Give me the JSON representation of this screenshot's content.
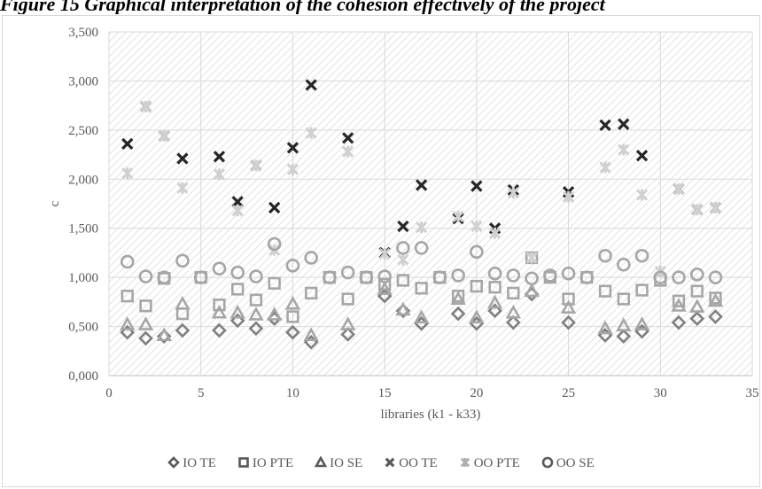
{
  "caption": "Figure 15 Graphical interpretation of the cohesion effectively of the project",
  "chart_data": {
    "type": "scatter",
    "title": "",
    "xlabel": "libraries (k1 - k33)",
    "ylabel": "c",
    "xlim": [
      0,
      35
    ],
    "ylim": [
      0,
      3.5
    ],
    "x_ticks": [
      "0",
      "5",
      "10",
      "15",
      "20",
      "25",
      "30",
      "35"
    ],
    "y_ticks": [
      "0,000",
      "0,500",
      "1,000",
      "1,500",
      "2,000",
      "2,500",
      "3,000",
      "3,500"
    ],
    "grid": true,
    "legend_position": "bottom",
    "series": [
      {
        "name": "IO TE",
        "marker": "diamond",
        "color": "#7f7f7f",
        "points": [
          [
            1,
            0.44
          ],
          [
            2,
            0.38
          ],
          [
            3,
            0.4
          ],
          [
            4,
            0.46
          ],
          [
            6,
            0.46
          ],
          [
            7,
            0.56
          ],
          [
            8,
            0.48
          ],
          [
            9,
            0.58
          ],
          [
            10,
            0.44
          ],
          [
            11,
            0.34
          ],
          [
            13,
            0.42
          ],
          [
            15,
            0.81
          ],
          [
            16,
            0.66
          ],
          [
            17,
            0.53
          ],
          [
            19,
            0.63
          ],
          [
            20,
            0.53
          ],
          [
            21,
            0.66
          ],
          [
            22,
            0.54
          ],
          [
            23,
            0.83
          ],
          [
            25,
            0.54
          ],
          [
            27,
            0.41
          ],
          [
            28,
            0.4
          ],
          [
            29,
            0.45
          ],
          [
            31,
            0.54
          ],
          [
            32,
            0.58
          ],
          [
            33,
            0.6
          ]
        ]
      },
      {
        "name": "IO PTE",
        "marker": "square",
        "color": "#a6a6a6",
        "points": [
          [
            1,
            0.81
          ],
          [
            2,
            0.71
          ],
          [
            3,
            0.99
          ],
          [
            4,
            0.63
          ],
          [
            5,
            1.0
          ],
          [
            6,
            0.72
          ],
          [
            7,
            0.88
          ],
          [
            8,
            0.77
          ],
          [
            9,
            0.94
          ],
          [
            10,
            0.6
          ],
          [
            11,
            0.84
          ],
          [
            12,
            1.0
          ],
          [
            13,
            0.78
          ],
          [
            14,
            1.0
          ],
          [
            15,
            0.93
          ],
          [
            16,
            0.97
          ],
          [
            17,
            0.89
          ],
          [
            18,
            1.0
          ],
          [
            19,
            0.81
          ],
          [
            20,
            0.91
          ],
          [
            21,
            0.9
          ],
          [
            22,
            0.84
          ],
          [
            23,
            1.2
          ],
          [
            24,
            1.0
          ],
          [
            25,
            0.78
          ],
          [
            26,
            1.0
          ],
          [
            27,
            0.86
          ],
          [
            28,
            0.78
          ],
          [
            29,
            0.87
          ],
          [
            30,
            0.97
          ],
          [
            31,
            0.76
          ],
          [
            32,
            0.86
          ],
          [
            33,
            0.79
          ]
        ]
      },
      {
        "name": "IO SE",
        "marker": "triangle",
        "color": "#a6a6a6",
        "points": [
          [
            1,
            0.52
          ],
          [
            2,
            0.52
          ],
          [
            3,
            0.41
          ],
          [
            4,
            0.73
          ],
          [
            6,
            0.64
          ],
          [
            7,
            0.64
          ],
          [
            8,
            0.62
          ],
          [
            9,
            0.62
          ],
          [
            10,
            0.73
          ],
          [
            11,
            0.41
          ],
          [
            13,
            0.52
          ],
          [
            15,
            0.88
          ],
          [
            16,
            0.67
          ],
          [
            17,
            0.59
          ],
          [
            19,
            0.78
          ],
          [
            20,
            0.59
          ],
          [
            21,
            0.74
          ],
          [
            22,
            0.64
          ],
          [
            23,
            0.86
          ],
          [
            25,
            0.69
          ],
          [
            27,
            0.48
          ],
          [
            28,
            0.51
          ],
          [
            29,
            0.52
          ],
          [
            31,
            0.71
          ],
          [
            32,
            0.7
          ],
          [
            33,
            0.76
          ]
        ]
      },
      {
        "name": "OO TE",
        "marker": "x",
        "color": "#262626",
        "points": [
          [
            1,
            2.36
          ],
          [
            2,
            2.74
          ],
          [
            3,
            2.44
          ],
          [
            4,
            2.21
          ],
          [
            6,
            2.23
          ],
          [
            7,
            1.77
          ],
          [
            8,
            2.14
          ],
          [
            9,
            1.71
          ],
          [
            10,
            2.32
          ],
          [
            11,
            2.96
          ],
          [
            13,
            2.42
          ],
          [
            15,
            1.25
          ],
          [
            16,
            1.52
          ],
          [
            17,
            1.94
          ],
          [
            19,
            1.6
          ],
          [
            20,
            1.93
          ],
          [
            21,
            1.5
          ],
          [
            22,
            1.89
          ],
          [
            25,
            1.87
          ],
          [
            27,
            2.55
          ],
          [
            28,
            2.56
          ],
          [
            29,
            2.24
          ],
          [
            31,
            1.9
          ],
          [
            32,
            1.69
          ],
          [
            33,
            1.71
          ]
        ]
      },
      {
        "name": "OO PTE",
        "marker": "star",
        "color": "#d0d0d0",
        "points": [
          [
            1,
            2.06
          ],
          [
            2,
            2.74
          ],
          [
            3,
            2.44
          ],
          [
            4,
            1.91
          ],
          [
            6,
            2.05
          ],
          [
            7,
            1.68
          ],
          [
            8,
            2.14
          ],
          [
            9,
            1.28
          ],
          [
            10,
            2.1
          ],
          [
            11,
            2.47
          ],
          [
            13,
            2.28
          ],
          [
            15,
            1.24
          ],
          [
            16,
            1.18
          ],
          [
            17,
            1.51
          ],
          [
            19,
            1.62
          ],
          [
            20,
            1.52
          ],
          [
            21,
            1.45
          ],
          [
            22,
            1.86
          ],
          [
            23,
            1.2
          ],
          [
            25,
            1.82
          ],
          [
            27,
            2.12
          ],
          [
            28,
            2.3
          ],
          [
            29,
            1.84
          ],
          [
            30,
            1.06
          ],
          [
            31,
            1.9
          ],
          [
            32,
            1.69
          ],
          [
            33,
            1.71
          ]
        ]
      },
      {
        "name": "OO SE",
        "marker": "circle",
        "color": "#a6a6a6",
        "points": [
          [
            1,
            1.16
          ],
          [
            2,
            1.01
          ],
          [
            3,
            1.0
          ],
          [
            4,
            1.17
          ],
          [
            5,
            1.0
          ],
          [
            6,
            1.09
          ],
          [
            7,
            1.05
          ],
          [
            8,
            1.01
          ],
          [
            9,
            1.34
          ],
          [
            10,
            1.12
          ],
          [
            11,
            1.2
          ],
          [
            12,
            1.0
          ],
          [
            13,
            1.05
          ],
          [
            14,
            1.0
          ],
          [
            15,
            1.01
          ],
          [
            16,
            1.3
          ],
          [
            17,
            1.3
          ],
          [
            18,
            1.0
          ],
          [
            19,
            1.02
          ],
          [
            20,
            1.26
          ],
          [
            21,
            1.04
          ],
          [
            22,
            1.02
          ],
          [
            23,
            0.99
          ],
          [
            24,
            1.02
          ],
          [
            25,
            1.04
          ],
          [
            26,
            1.0
          ],
          [
            27,
            1.22
          ],
          [
            28,
            1.13
          ],
          [
            29,
            1.22
          ],
          [
            30,
            1.0
          ],
          [
            31,
            1.0
          ],
          [
            32,
            1.03
          ],
          [
            33,
            1.0
          ]
        ]
      }
    ]
  }
}
